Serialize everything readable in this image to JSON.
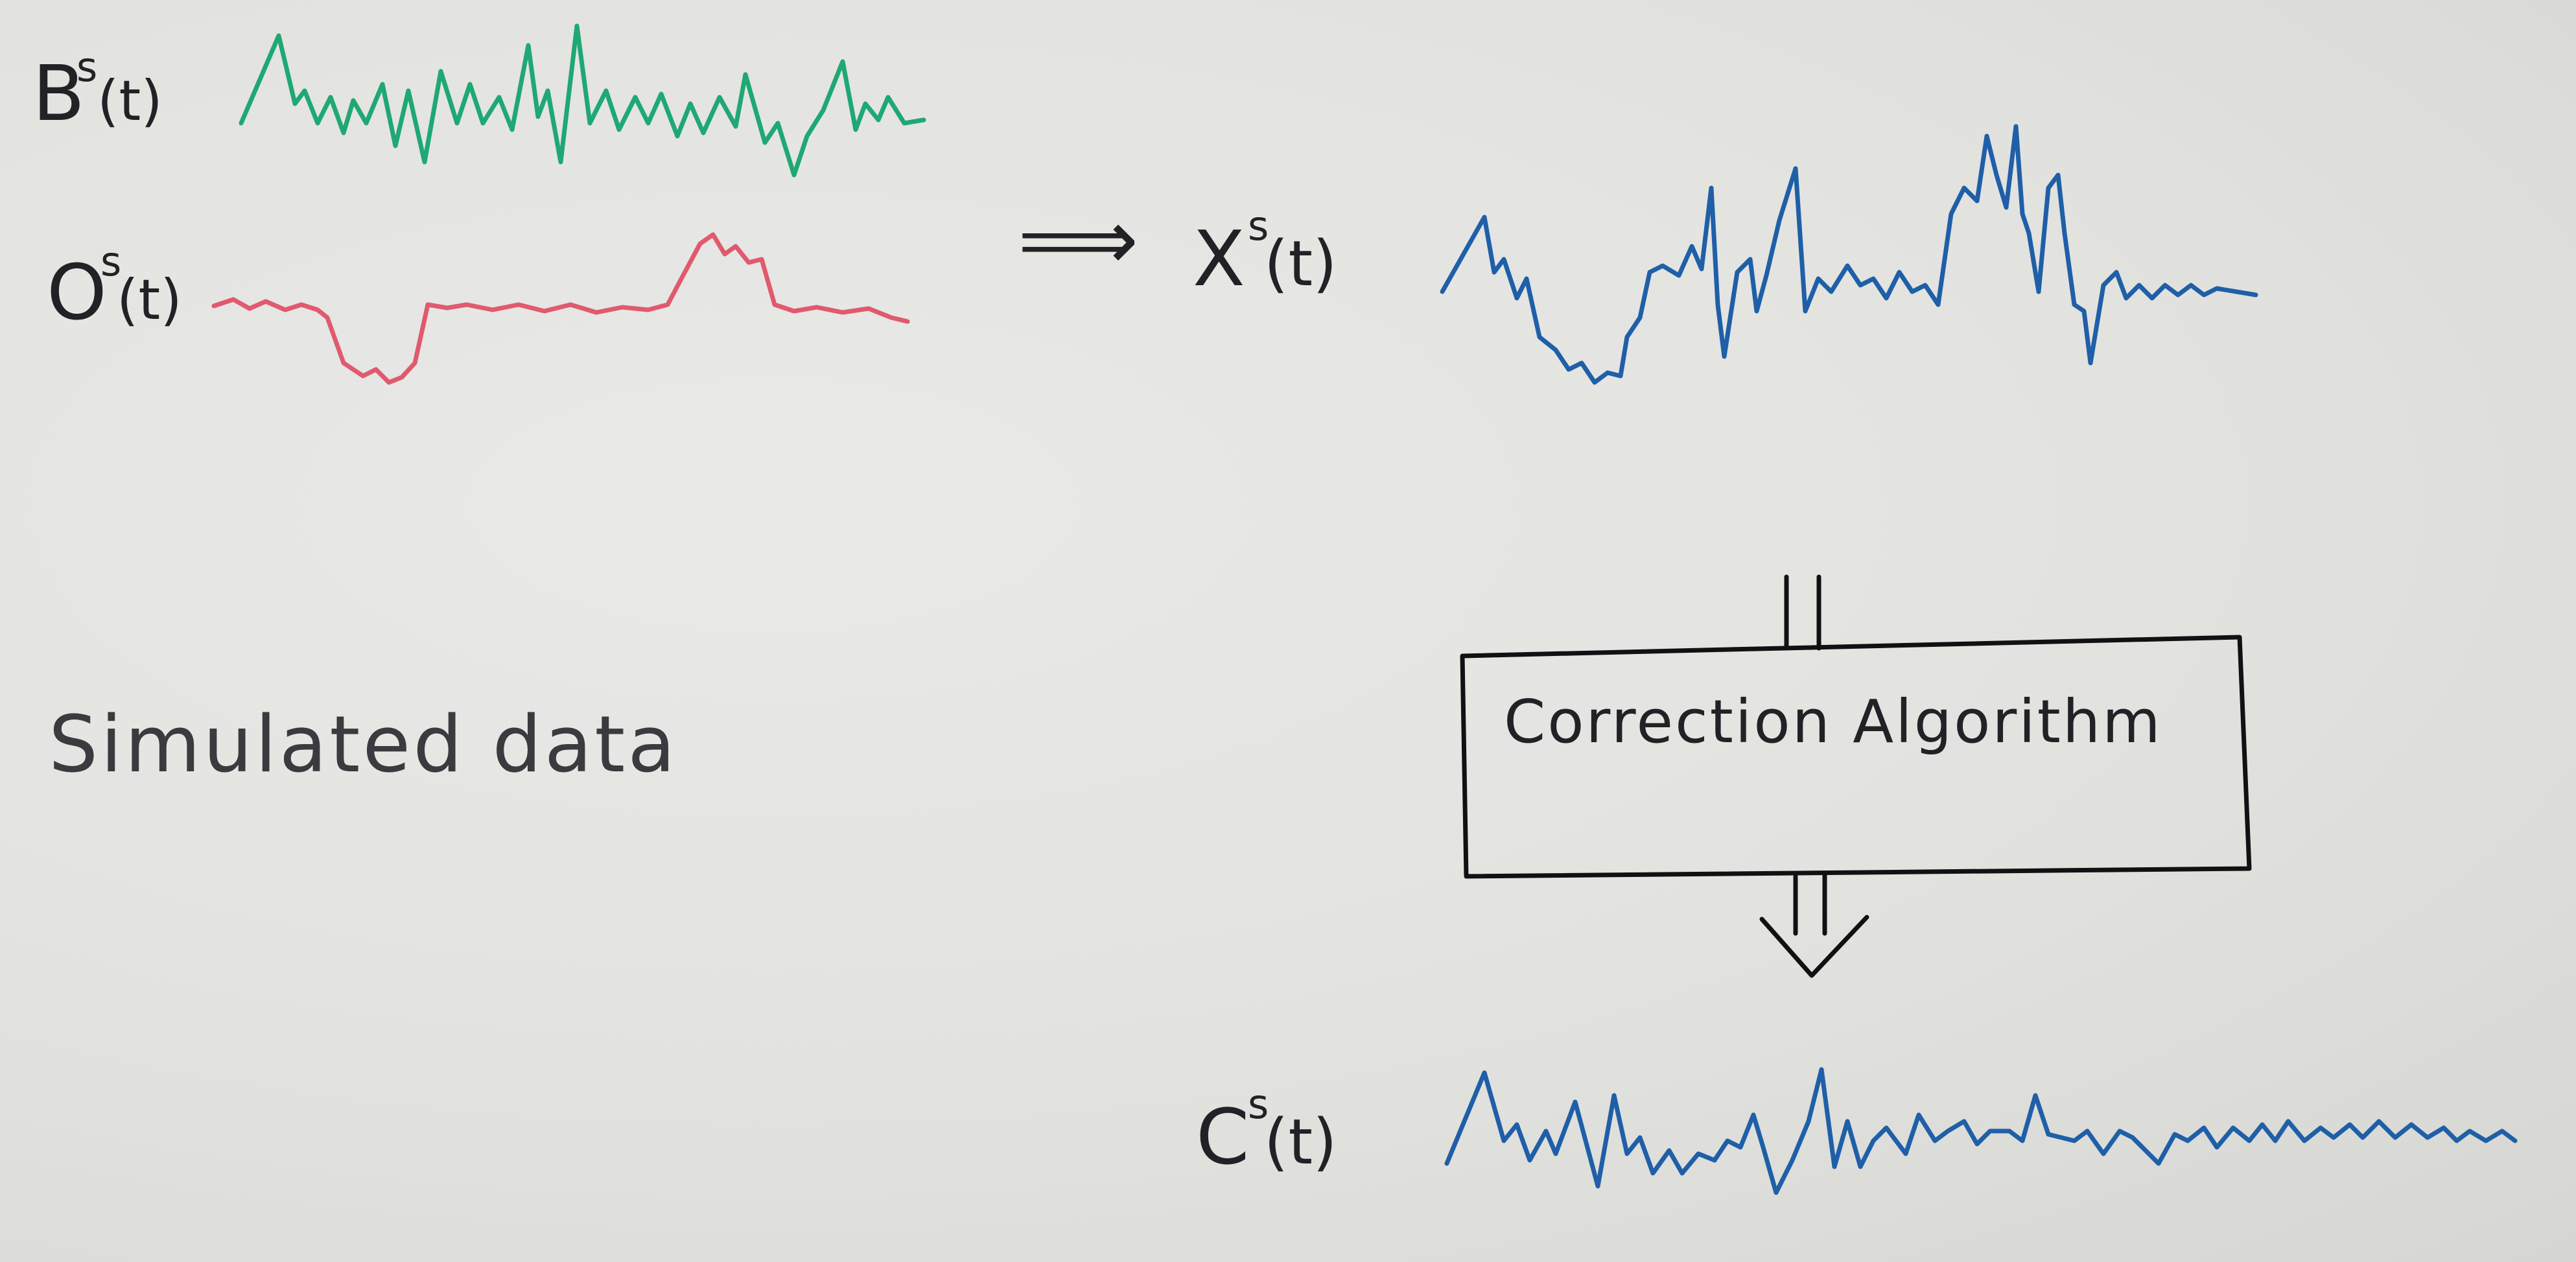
{
  "labels": {
    "b": {
      "main": "B",
      "sup": "s",
      "arg": "(t)"
    },
    "o": {
      "main": "O",
      "sup": "s",
      "arg": "(t)"
    },
    "x": {
      "main": "X",
      "sup": "s",
      "arg": "(t)"
    },
    "c": {
      "main": "C",
      "sup": "s",
      "arg": "(t)"
    }
  },
  "implies_arrow": "⟹",
  "caption": "Simulated data",
  "box_label": "Correction Algorithm",
  "colors": {
    "b": "#1fa874",
    "o": "#e05a6e",
    "x": "#1f5fa8",
    "c": "#1f5fa8",
    "ink": "#111114"
  }
}
